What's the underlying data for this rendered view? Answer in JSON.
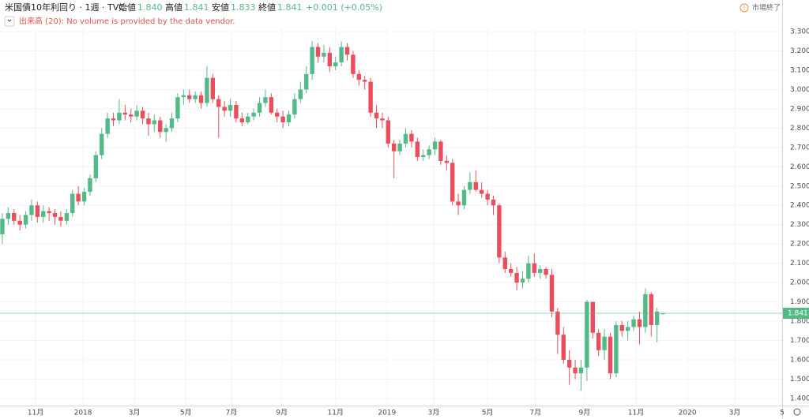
{
  "header": {
    "title": "米国債10年利回り · 1週 · TVC",
    "open_label": "始値",
    "open": "1.840",
    "high_label": "高値",
    "high": "1.841",
    "low_label": "安値",
    "low": "1.833",
    "close_label": "終値",
    "close": "1.841",
    "change": "+0.001 (+0.05%)",
    "volume": "出来高 (20): No volume is provided by the data vendor.",
    "market_status": "市場終了"
  },
  "chart_data": {
    "type": "candlestick",
    "up_color": "#53b987",
    "down_color": "#eb4d5c",
    "grid": true,
    "categories": [
      null,
      null,
      null,
      null,
      null,
      null,
      null,
      null,
      null,
      null,
      null,
      null,
      null,
      null,
      null,
      null,
      null,
      null,
      null,
      null,
      null,
      null,
      null,
      null,
      null,
      null,
      null,
      null,
      null,
      null,
      null,
      null,
      null,
      null,
      null,
      null,
      null,
      null,
      null,
      null,
      null,
      null,
      null,
      null,
      null,
      null,
      null,
      null,
      null,
      null,
      null,
      null,
      null,
      null,
      null,
      null,
      null,
      null,
      null,
      null,
      null,
      null,
      null,
      null,
      null,
      null,
      null,
      null,
      null,
      null,
      null,
      null,
      null,
      null,
      null,
      null,
      null,
      null,
      null,
      null,
      null,
      null,
      null,
      null,
      null,
      null,
      null,
      null,
      null,
      null,
      null,
      null,
      null,
      null,
      null,
      null,
      null,
      null,
      null,
      null,
      null,
      null,
      null,
      null,
      null,
      null,
      null,
      null,
      null,
      null,
      null,
      null,
      null,
      null
    ],
    "open": [
      2.25,
      2.33,
      2.36,
      2.32,
      2.3,
      2.35,
      2.4,
      2.34,
      2.37,
      2.36,
      2.34,
      2.32,
      2.36,
      2.46,
      2.42,
      2.47,
      2.54,
      2.66,
      2.77,
      2.85,
      2.84,
      2.88,
      2.87,
      2.86,
      2.89,
      2.85,
      2.82,
      2.84,
      2.78,
      2.8,
      2.85,
      2.96,
      2.97,
      2.95,
      2.97,
      2.93,
      3.06,
      2.95,
      2.91,
      2.89,
      2.92,
      2.85,
      2.83,
      2.86,
      2.88,
      2.93,
      2.96,
      2.88,
      2.86,
      2.83,
      2.87,
      2.95,
      3.0,
      3.08,
      3.22,
      3.17,
      3.19,
      3.12,
      3.14,
      3.22,
      3.18,
      3.08,
      3.05,
      3.04,
      2.88,
      2.85,
      2.84,
      2.72,
      2.68,
      2.72,
      2.77,
      2.73,
      2.65,
      2.66,
      2.69,
      2.73,
      2.63,
      2.62,
      2.42,
      2.4,
      2.48,
      2.52,
      2.48,
      2.46,
      2.43,
      2.4,
      2.13,
      2.07,
      2.05,
      2.0,
      2.02,
      2.1,
      2.05,
      2.07,
      2.04,
      1.85,
      1.73,
      1.6,
      1.56,
      1.53,
      1.56,
      1.9,
      1.74,
      1.65,
      1.72,
      1.53,
      1.78,
      1.75,
      1.77,
      1.81,
      1.77,
      1.94,
      1.78,
      1.84
    ],
    "high": [
      2.36,
      2.39,
      2.38,
      2.35,
      2.37,
      2.43,
      2.42,
      2.4,
      2.39,
      2.38,
      2.37,
      2.38,
      2.48,
      2.5,
      2.49,
      2.56,
      2.68,
      2.8,
      2.88,
      2.88,
      2.95,
      2.92,
      2.9,
      2.92,
      2.91,
      2.88,
      2.87,
      2.86,
      2.82,
      2.88,
      2.98,
      3.0,
      3.0,
      2.99,
      2.99,
      3.12,
      3.08,
      2.97,
      2.94,
      2.95,
      2.94,
      2.88,
      2.88,
      2.9,
      2.96,
      3.0,
      2.98,
      2.9,
      2.89,
      2.89,
      2.98,
      3.04,
      3.12,
      3.25,
      3.24,
      3.23,
      3.22,
      3.17,
      3.25,
      3.24,
      3.2,
      3.1,
      3.07,
      3.06,
      2.92,
      2.88,
      2.86,
      2.74,
      2.74,
      2.8,
      2.79,
      2.75,
      2.69,
      2.71,
      2.75,
      2.74,
      2.66,
      2.64,
      2.46,
      2.5,
      2.57,
      2.58,
      2.52,
      2.48,
      2.45,
      2.41,
      2.16,
      2.1,
      2.08,
      2.06,
      2.14,
      2.15,
      2.09,
      2.08,
      2.07,
      1.87,
      1.77,
      1.65,
      1.6,
      1.6,
      1.91,
      1.9,
      1.76,
      1.76,
      1.74,
      1.8,
      1.8,
      1.8,
      1.83,
      1.85,
      1.97,
      1.95,
      1.87,
      1.841
    ],
    "low": [
      2.2,
      2.3,
      2.3,
      2.27,
      2.28,
      2.32,
      2.31,
      2.31,
      2.32,
      2.3,
      2.29,
      2.3,
      2.34,
      2.4,
      2.4,
      2.45,
      2.52,
      2.64,
      2.75,
      2.81,
      2.82,
      2.84,
      2.83,
      2.84,
      2.82,
      2.76,
      2.78,
      2.75,
      2.73,
      2.78,
      2.83,
      2.92,
      2.93,
      2.93,
      2.9,
      2.91,
      2.93,
      2.75,
      2.86,
      2.86,
      2.83,
      2.81,
      2.82,
      2.84,
      2.86,
      2.91,
      2.87,
      2.83,
      2.8,
      2.81,
      2.85,
      2.93,
      2.98,
      3.05,
      3.14,
      3.14,
      3.09,
      3.1,
      3.12,
      3.15,
      3.06,
      3.02,
      3.0,
      2.86,
      2.8,
      2.8,
      2.7,
      2.54,
      2.66,
      2.7,
      2.7,
      2.63,
      2.63,
      2.64,
      2.66,
      2.61,
      2.58,
      2.4,
      2.35,
      2.38,
      2.46,
      2.47,
      2.44,
      2.4,
      2.35,
      2.1,
      2.05,
      2.03,
      1.96,
      1.97,
      2.0,
      2.03,
      2.02,
      2.02,
      1.82,
      1.63,
      1.58,
      1.47,
      1.5,
      1.44,
      1.49,
      1.71,
      1.62,
      1.6,
      1.5,
      1.51,
      1.72,
      1.7,
      1.75,
      1.68,
      1.74,
      1.72,
      1.69,
      1.833
    ],
    "close": [
      2.33,
      2.36,
      2.32,
      2.3,
      2.35,
      2.4,
      2.34,
      2.37,
      2.36,
      2.34,
      2.32,
      2.36,
      2.46,
      2.42,
      2.47,
      2.54,
      2.66,
      2.77,
      2.85,
      2.84,
      2.88,
      2.87,
      2.86,
      2.89,
      2.85,
      2.82,
      2.84,
      2.78,
      2.8,
      2.85,
      2.96,
      2.97,
      2.95,
      2.97,
      2.93,
      3.06,
      2.95,
      2.91,
      2.89,
      2.92,
      2.85,
      2.83,
      2.86,
      2.88,
      2.93,
      2.96,
      2.88,
      2.86,
      2.83,
      2.87,
      2.95,
      3.0,
      3.08,
      3.22,
      3.17,
      3.19,
      3.12,
      3.14,
      3.22,
      3.18,
      3.08,
      3.05,
      3.04,
      2.88,
      2.85,
      2.84,
      2.72,
      2.68,
      2.72,
      2.77,
      2.73,
      2.65,
      2.66,
      2.69,
      2.73,
      2.63,
      2.62,
      2.42,
      2.4,
      2.48,
      2.52,
      2.48,
      2.46,
      2.43,
      2.4,
      2.13,
      2.07,
      2.05,
      2.0,
      2.02,
      2.1,
      2.05,
      2.07,
      2.04,
      1.85,
      1.73,
      1.6,
      1.56,
      1.53,
      1.56,
      1.9,
      1.74,
      1.65,
      1.72,
      1.53,
      1.78,
      1.75,
      1.77,
      1.81,
      1.77,
      1.94,
      1.78,
      1.85,
      1.841
    ],
    "last_price": {
      "value": 1.841,
      "label": "1.841"
    },
    "xlim": [
      -0.4,
      133.4
    ],
    "xticks": [
      {
        "value": 5.7,
        "label": "11月"
      },
      {
        "value": 13.8,
        "label": "2018"
      },
      {
        "value": 22.6,
        "label": "3月"
      },
      {
        "value": 31.4,
        "label": "5月"
      },
      {
        "value": 39.2,
        "label": "7月"
      },
      {
        "value": 47.8,
        "label": "9月"
      },
      {
        "value": 57,
        "label": "11月"
      },
      {
        "value": 65.8,
        "label": "2019"
      },
      {
        "value": 73.8,
        "label": "3月"
      },
      {
        "value": 83,
        "label": "5月"
      },
      {
        "value": 91.2,
        "label": "7月"
      },
      {
        "value": 99.6,
        "label": "9月"
      },
      {
        "value": 108.4,
        "label": "11月"
      },
      {
        "value": 117.2,
        "label": "2020"
      },
      {
        "value": 125.3,
        "label": "3月"
      },
      {
        "value": 133.4,
        "label": "5"
      }
    ],
    "ylim": [
      1.363,
      3.38
    ],
    "yticks": [
      {
        "value": 1.4,
        "label": "1.400"
      },
      {
        "value": 1.5,
        "label": "1.500"
      },
      {
        "value": 1.6,
        "label": "1.600"
      },
      {
        "value": 1.7,
        "label": "1.700"
      },
      {
        "value": 1.8,
        "label": "1.800"
      },
      {
        "value": 1.9,
        "label": "1.900"
      },
      {
        "value": 2.0,
        "label": "2.000"
      },
      {
        "value": 2.1,
        "label": "2.100"
      },
      {
        "value": 2.2,
        "label": "2.200"
      },
      {
        "value": 2.3,
        "label": "2.300"
      },
      {
        "value": 2.4,
        "label": "2.400"
      },
      {
        "value": 2.5,
        "label": "2.500"
      },
      {
        "value": 2.6,
        "label": "2.600"
      },
      {
        "value": 2.7,
        "label": "2.700"
      },
      {
        "value": 2.8,
        "label": "2.800"
      },
      {
        "value": 2.9,
        "label": "2.900"
      },
      {
        "value": 3.0,
        "label": "3.000"
      },
      {
        "value": 3.1,
        "label": "3.100"
      },
      {
        "value": 3.2,
        "label": "3.200"
      },
      {
        "value": 3.3,
        "label": "3.300"
      }
    ]
  }
}
